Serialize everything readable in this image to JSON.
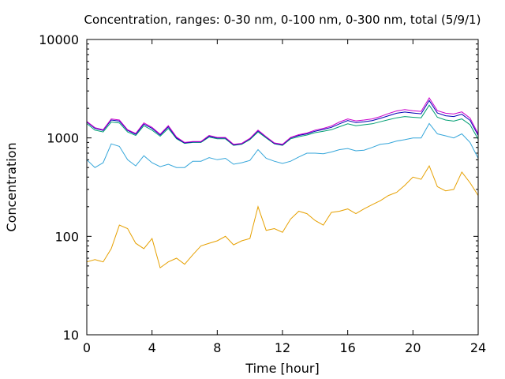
{
  "chart_data": {
    "type": "line",
    "title": "Concentration, ranges: 0-30 nm, 0-100 nm, 0-300 nm, total (5/9/1)",
    "xlabel": "Time [hour]",
    "ylabel": "Concentration",
    "x_ticks": [
      0,
      4,
      8,
      12,
      16,
      20,
      24
    ],
    "y_ticks": [
      10,
      100,
      1000,
      10000
    ],
    "xlim": [
      0,
      24
    ],
    "ylim": [
      10,
      10000
    ],
    "y_scale": "log",
    "grid": false,
    "legend": "none",
    "x": [
      0,
      0.5,
      1,
      1.5,
      2,
      2.5,
      3,
      3.5,
      4,
      4.5,
      5,
      5.5,
      6,
      6.5,
      7,
      7.5,
      8,
      8.5,
      9,
      9.5,
      10,
      10.5,
      11,
      11.5,
      12,
      12.5,
      13,
      13.5,
      14,
      14.5,
      15,
      15.5,
      16,
      16.5,
      17,
      17.5,
      18,
      18.5,
      19,
      19.5,
      20,
      20.5,
      21,
      21.5,
      22,
      22.5,
      23,
      23.5,
      24
    ],
    "series": [
      {
        "color": "#e6a000",
        "values": [
          55,
          58,
          55,
          75,
          130,
          120,
          85,
          75,
          95,
          48,
          55,
          60,
          52,
          65,
          80,
          85,
          90,
          100,
          82,
          90,
          95,
          200,
          115,
          120,
          110,
          150,
          180,
          170,
          145,
          130,
          175,
          180,
          190,
          170,
          190,
          210,
          230,
          260,
          280,
          330,
          400,
          380,
          520,
          320,
          290,
          300,
          450,
          350,
          260
        ]
      },
      {
        "color": "#35a6da",
        "values": [
          600,
          500,
          560,
          870,
          820,
          600,
          520,
          660,
          560,
          510,
          540,
          500,
          500,
          580,
          580,
          630,
          600,
          620,
          540,
          560,
          590,
          760,
          620,
          580,
          550,
          580,
          640,
          700,
          700,
          690,
          720,
          760,
          780,
          740,
          750,
          800,
          860,
          880,
          930,
          960,
          1000,
          1000,
          1400,
          1100,
          1050,
          1000,
          1100,
          900,
          620
        ]
      },
      {
        "color": "#009e73",
        "values": [
          1400,
          1200,
          1150,
          1450,
          1420,
          1150,
          1060,
          1330,
          1200,
          1040,
          1250,
          980,
          880,
          900,
          900,
          1020,
          980,
          980,
          840,
          860,
          960,
          1150,
          1000,
          870,
          840,
          980,
          1030,
          1070,
          1130,
          1170,
          1210,
          1300,
          1390,
          1330,
          1360,
          1390,
          1460,
          1530,
          1600,
          1650,
          1620,
          1600,
          2150,
          1620,
          1520,
          1480,
          1560,
          1360,
          970
        ]
      },
      {
        "color": "#0000b4",
        "values": [
          1450,
          1250,
          1190,
          1520,
          1480,
          1190,
          1090,
          1380,
          1250,
          1070,
          1300,
          1000,
          890,
          910,
          910,
          1040,
          1000,
          1000,
          850,
          870,
          980,
          1180,
          1020,
          880,
          850,
          1000,
          1060,
          1100,
          1170,
          1220,
          1280,
          1390,
          1500,
          1430,
          1460,
          1500,
          1580,
          1680,
          1780,
          1830,
          1790,
          1760,
          2400,
          1790,
          1680,
          1650,
          1740,
          1510,
          1060
        ]
      },
      {
        "color": "#cc00cc",
        "values": [
          1470,
          1270,
          1210,
          1560,
          1520,
          1210,
          1110,
          1420,
          1280,
          1090,
          1330,
          1020,
          900,
          920,
          920,
          1060,
          1010,
          1010,
          860,
          880,
          990,
          1200,
          1030,
          890,
          860,
          1010,
          1080,
          1120,
          1200,
          1250,
          1320,
          1450,
          1560,
          1490,
          1520,
          1560,
          1650,
          1770,
          1880,
          1940,
          1890,
          1860,
          2550,
          1890,
          1780,
          1750,
          1840,
          1590,
          1100
        ]
      }
    ]
  }
}
